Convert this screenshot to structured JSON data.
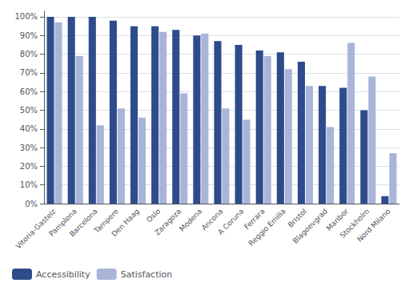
{
  "chart_data": {
    "type": "bar",
    "categories": [
      "Vitoria-Gasteiz",
      "Pamplona",
      "Barcelona",
      "Tampere",
      "Den Haag",
      "Oslo",
      "Zaragoza",
      "Modena",
      "Ancona",
      "A Coruna",
      "Ferrara",
      "Reggio Emilia",
      "Bristol",
      "Blagoevgrad",
      "Maribor",
      "Stockholm",
      "Nord Milano"
    ],
    "series": [
      {
        "name": "Accessibility",
        "color": "#2E4C8C",
        "values": [
          100,
          100,
          100,
          98,
          95,
          95,
          93,
          90,
          87,
          85,
          82,
          81,
          76,
          63,
          62,
          50,
          4
        ]
      },
      {
        "name": "Satisfaction",
        "color": "#A8B4D8",
        "values": [
          97,
          79,
          42,
          51,
          46,
          92,
          59,
          91,
          51,
          45,
          79,
          72,
          63,
          41,
          86,
          68,
          27
        ]
      }
    ],
    "ylim": [
      0,
      103
    ],
    "yticks": [
      {
        "value": 0,
        "label": "0%"
      },
      {
        "value": 10,
        "label": "10%"
      },
      {
        "value": 20,
        "label": "20%"
      },
      {
        "value": 30,
        "label": "30%"
      },
      {
        "value": 40,
        "label": "40%"
      },
      {
        "value": 50,
        "label": "50%"
      },
      {
        "value": 60,
        "label": "60%"
      },
      {
        "value": 70,
        "label": "70%"
      },
      {
        "value": 80,
        "label": "80%"
      },
      {
        "value": 90,
        "label": "90%"
      },
      {
        "value": 100,
        "label": "100%"
      }
    ],
    "grid": true,
    "legend": "lower left"
  }
}
